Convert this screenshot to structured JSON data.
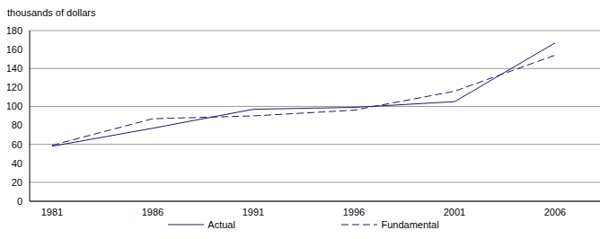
{
  "chart_data": {
    "type": "line",
    "y_label": "thousands of dollars",
    "categories": [
      "1981",
      "1986",
      "1991",
      "1996",
      "2001",
      "2006"
    ],
    "series": [
      {
        "name": "Actual",
        "color": "#1a1a6e",
        "line_style": "solid",
        "values": [
          58,
          77,
          97,
          99,
          105,
          167
        ]
      },
      {
        "name": "Fundamental",
        "color": "#1a1a6e",
        "line_style": "dashed",
        "values": [
          59,
          87,
          90,
          96,
          116,
          154
        ]
      }
    ],
    "ylim": [
      0,
      180
    ],
    "yticks": [
      0,
      20,
      40,
      60,
      80,
      100,
      120,
      140,
      160,
      180
    ],
    "grid": true,
    "legend": "bottom"
  }
}
